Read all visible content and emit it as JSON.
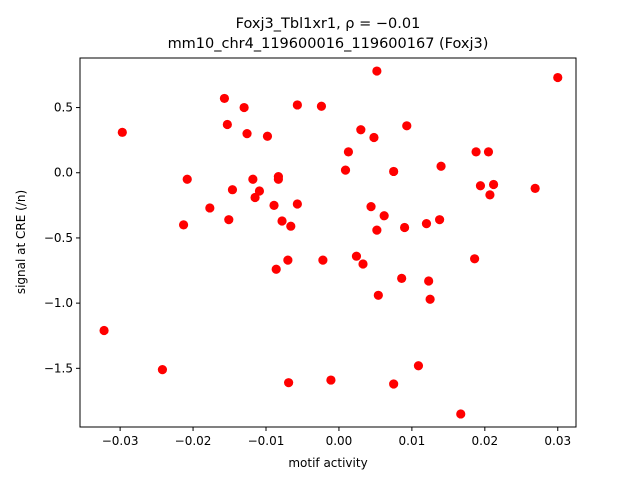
{
  "chart_data": {
    "type": "scatter",
    "title_line1": "Foxj3_Tbl1xr1, ρ = −0.01",
    "title_line2": "mm10_chr4_119600016_119600167 (Foxj3)",
    "xlabel": "motif activity",
    "ylabel": "signal at CRE (/n)",
    "xlim": [
      -0.0355,
      0.0325
    ],
    "ylim": [
      -1.95,
      0.88
    ],
    "x_ticks": [
      {
        "value": -0.03,
        "label": "−0.03"
      },
      {
        "value": -0.02,
        "label": "−0.02"
      },
      {
        "value": -0.01,
        "label": "−0.01"
      },
      {
        "value": 0.0,
        "label": "0.00"
      },
      {
        "value": 0.01,
        "label": "0.01"
      },
      {
        "value": 0.02,
        "label": "0.02"
      },
      {
        "value": 0.03,
        "label": "0.03"
      }
    ],
    "y_ticks": [
      {
        "value": -1.5,
        "label": "−1.5"
      },
      {
        "value": -1.0,
        "label": "−1.0"
      },
      {
        "value": -0.5,
        "label": "−0.5"
      },
      {
        "value": 0.0,
        "label": "0.0"
      },
      {
        "value": 0.5,
        "label": "0.5"
      }
    ],
    "grid": false,
    "marker_color": "#ff0000",
    "points": [
      {
        "x": -0.0322,
        "y": -1.21
      },
      {
        "x": -0.0297,
        "y": 0.31
      },
      {
        "x": -0.0242,
        "y": -1.51
      },
      {
        "x": -0.0213,
        "y": -0.4
      },
      {
        "x": -0.0208,
        "y": -0.05
      },
      {
        "x": -0.0177,
        "y": -0.27
      },
      {
        "x": -0.0157,
        "y": 0.57
      },
      {
        "x": -0.0153,
        "y": 0.37
      },
      {
        "x": -0.0151,
        "y": -0.36
      },
      {
        "x": -0.0146,
        "y": -0.13
      },
      {
        "x": -0.013,
        "y": 0.5
      },
      {
        "x": -0.0126,
        "y": 0.3
      },
      {
        "x": -0.0118,
        "y": -0.05
      },
      {
        "x": -0.0115,
        "y": -0.19
      },
      {
        "x": -0.0109,
        "y": -0.14
      },
      {
        "x": -0.0098,
        "y": 0.28
      },
      {
        "x": -0.0089,
        "y": -0.25
      },
      {
        "x": -0.0086,
        "y": -0.74
      },
      {
        "x": -0.0083,
        "y": -0.03
      },
      {
        "x": -0.0083,
        "y": -0.05
      },
      {
        "x": -0.0078,
        "y": -0.37
      },
      {
        "x": -0.007,
        "y": -0.67
      },
      {
        "x": -0.0069,
        "y": -1.61
      },
      {
        "x": -0.0066,
        "y": -0.41
      },
      {
        "x": -0.0057,
        "y": 0.52
      },
      {
        "x": -0.0057,
        "y": -0.24
      },
      {
        "x": -0.0024,
        "y": 0.51
      },
      {
        "x": -0.0022,
        "y": -0.67
      },
      {
        "x": -0.0011,
        "y": -1.59
      },
      {
        "x": 0.0009,
        "y": 0.02
      },
      {
        "x": 0.0013,
        "y": 0.16
      },
      {
        "x": 0.0024,
        "y": -0.64
      },
      {
        "x": 0.003,
        "y": 0.33
      },
      {
        "x": 0.0033,
        "y": -0.7
      },
      {
        "x": 0.0044,
        "y": -0.26
      },
      {
        "x": 0.0048,
        "y": 0.27
      },
      {
        "x": 0.0052,
        "y": 0.78
      },
      {
        "x": 0.0052,
        "y": -0.44
      },
      {
        "x": 0.0054,
        "y": -0.94
      },
      {
        "x": 0.0062,
        "y": -0.33
      },
      {
        "x": 0.0075,
        "y": 0.01
      },
      {
        "x": 0.0075,
        "y": -1.62
      },
      {
        "x": 0.0086,
        "y": -0.81
      },
      {
        "x": 0.009,
        "y": -0.42
      },
      {
        "x": 0.0093,
        "y": 0.36
      },
      {
        "x": 0.0109,
        "y": -1.48
      },
      {
        "x": 0.012,
        "y": -0.39
      },
      {
        "x": 0.0123,
        "y": -0.83
      },
      {
        "x": 0.0125,
        "y": -0.97
      },
      {
        "x": 0.0138,
        "y": -0.36
      },
      {
        "x": 0.014,
        "y": 0.05
      },
      {
        "x": 0.0167,
        "y": -1.85
      },
      {
        "x": 0.0186,
        "y": -0.66
      },
      {
        "x": 0.0188,
        "y": 0.16
      },
      {
        "x": 0.0194,
        "y": -0.1
      },
      {
        "x": 0.0205,
        "y": 0.16
      },
      {
        "x": 0.0207,
        "y": -0.17
      },
      {
        "x": 0.0212,
        "y": -0.09
      },
      {
        "x": 0.0269,
        "y": -0.12
      },
      {
        "x": 0.03,
        "y": 0.73
      }
    ]
  }
}
